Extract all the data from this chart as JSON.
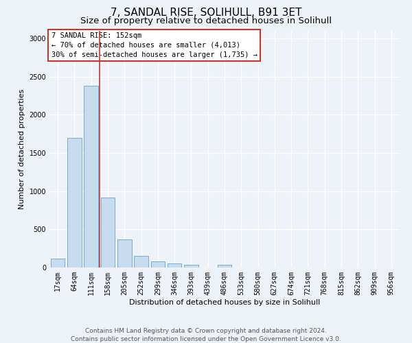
{
  "title": "7, SANDAL RISE, SOLIHULL, B91 3ET",
  "subtitle": "Size of property relative to detached houses in Solihull",
  "xlabel": "Distribution of detached houses by size in Solihull",
  "ylabel": "Number of detached properties",
  "categories": [
    "17sqm",
    "64sqm",
    "111sqm",
    "158sqm",
    "205sqm",
    "252sqm",
    "299sqm",
    "346sqm",
    "393sqm",
    "439sqm",
    "486sqm",
    "533sqm",
    "580sqm",
    "627sqm",
    "674sqm",
    "721sqm",
    "768sqm",
    "815sqm",
    "862sqm",
    "909sqm",
    "956sqm"
  ],
  "values": [
    115,
    1700,
    2380,
    920,
    365,
    155,
    80,
    55,
    35,
    0,
    35,
    0,
    0,
    0,
    0,
    0,
    0,
    0,
    0,
    0,
    0
  ],
  "bar_color": "#c8dcf0",
  "bar_edge_color": "#6a9fd0",
  "vline_color": "#c0392b",
  "vline_x": 2.5,
  "annotation_text": "7 SANDAL RISE: 152sqm\n← 70% of detached houses are smaller (4,013)\n30% of semi-detached houses are larger (1,735) →",
  "annotation_box_color": "#ffffff",
  "annotation_box_edge": "#c0392b",
  "ylim": [
    0,
    3100
  ],
  "yticks": [
    0,
    500,
    1000,
    1500,
    2000,
    2500,
    3000
  ],
  "footnote": "Contains HM Land Registry data © Crown copyright and database right 2024.\nContains public sector information licensed under the Open Government Licence v3.0.",
  "background_color": "#eef2f9",
  "grid_color": "#ffffff",
  "title_fontsize": 11,
  "subtitle_fontsize": 9.5,
  "axis_label_fontsize": 8,
  "tick_fontsize": 7,
  "annotation_fontsize": 7.5,
  "footnote_fontsize": 6.5
}
